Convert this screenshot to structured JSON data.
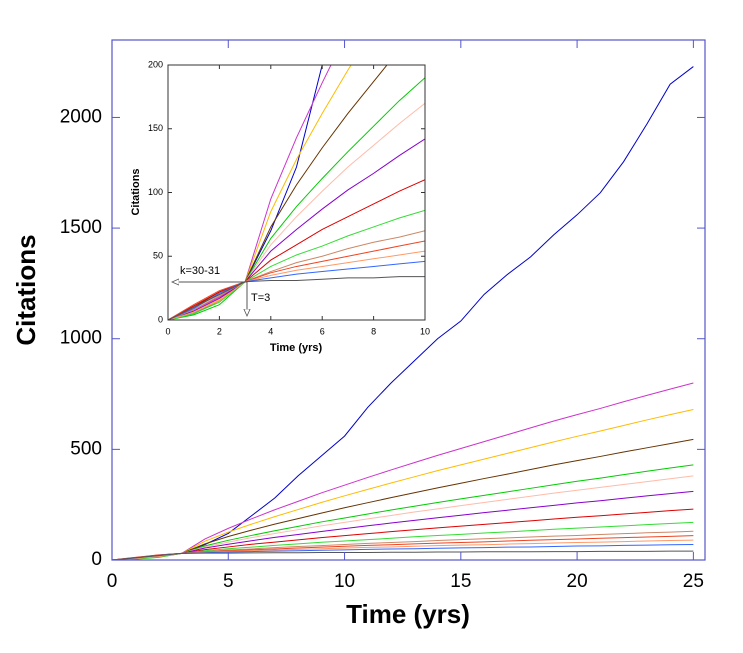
{
  "chart_data": [
    {
      "type": "line",
      "xlabel": "Time (yrs)",
      "ylabel": "Citations",
      "x": [
        0,
        1,
        2,
        3,
        4,
        5,
        6,
        7,
        8,
        9,
        10,
        11,
        12,
        13,
        14,
        15,
        16,
        17,
        18,
        19,
        20,
        21,
        22,
        23,
        24,
        25
      ],
      "xlim": [
        0,
        25.5
      ],
      "ylim": [
        0,
        2350
      ],
      "xticks": [
        0,
        5,
        10,
        15,
        20,
        25
      ],
      "yticks": [
        0,
        500,
        1000,
        1500,
        2000
      ],
      "series": [
        {
          "color": "#0000cc",
          "values": [
            0,
            5,
            15,
            30,
            70,
            120,
            200,
            280,
            380,
            470,
            560,
            690,
            800,
            900,
            1000,
            1080,
            1200,
            1290,
            1370,
            1470,
            1560,
            1660,
            1800,
            1970,
            2150,
            2230
          ]
        },
        {
          "color": "#cc33cc",
          "values": [
            0,
            8,
            18,
            30,
            95,
            143,
            186,
            227,
            265,
            303,
            338,
            373,
            407,
            440,
            473,
            504,
            535,
            566,
            597,
            628,
            657,
            685,
            715,
            744,
            772,
            800
          ]
        },
        {
          "color": "#ffbb00",
          "values": [
            0,
            6,
            16,
            30,
            85,
            126,
            162,
            196,
            228,
            260,
            290,
            319,
            348,
            376,
            404,
            430,
            456,
            482,
            508,
            534,
            559,
            583,
            608,
            633,
            657,
            680
          ]
        },
        {
          "color": "#663300",
          "values": [
            0,
            10,
            22,
            30,
            73,
            106,
            135,
            162,
            187,
            212,
            236,
            259,
            282,
            304,
            326,
            347,
            368,
            388,
            409,
            430,
            449,
            468,
            488,
            507,
            526,
            545
          ]
        },
        {
          "color": "#00cc00",
          "values": [
            0,
            4,
            12,
            30,
            64,
            89,
            111,
            132,
            152,
            172,
            190,
            208,
            226,
            243,
            260,
            276,
            292,
            308,
            324,
            340,
            356,
            370,
            386,
            401,
            416,
            430
          ]
        },
        {
          "color": "#ffbbaa",
          "values": [
            0,
            9,
            20,
            30,
            59,
            81,
            101,
            120,
            137,
            154,
            170,
            186,
            201,
            217,
            231,
            246,
            260,
            274,
            288,
            302,
            315,
            328,
            341,
            354,
            367,
            380
          ]
        },
        {
          "color": "#8800cc",
          "values": [
            0,
            7,
            17,
            30,
            54,
            71,
            87,
            102,
            115,
            129,
            142,
            155,
            167,
            179,
            191,
            202,
            214,
            225,
            236,
            247,
            258,
            268,
            279,
            290,
            300,
            310
          ]
        },
        {
          "color": "#dd0000",
          "values": [
            0,
            11,
            22,
            30,
            47,
            59,
            71,
            81,
            91,
            101,
            110,
            119,
            128,
            137,
            145,
            153,
            161,
            169,
            177,
            185,
            193,
            200,
            208,
            215,
            223,
            230
          ]
        },
        {
          "color": "#33dd33",
          "values": [
            0,
            5,
            14,
            30,
            42,
            51,
            58,
            66,
            73,
            80,
            86,
            92,
            98,
            105,
            111,
            116,
            122,
            127,
            133,
            139,
            144,
            149,
            154,
            160,
            165,
            170
          ]
        },
        {
          "color": "#cc8866",
          "values": [
            0,
            8,
            19,
            30,
            38,
            45,
            50,
            56,
            61,
            65,
            70,
            75,
            79,
            83,
            88,
            92,
            96,
            100,
            104,
            108,
            111,
            115,
            119,
            123,
            126,
            130
          ]
        },
        {
          "color": "#ee4422",
          "values": [
            0,
            12,
            23,
            30,
            37,
            42,
            46,
            50,
            54,
            58,
            62,
            66,
            69,
            73,
            76,
            79,
            82,
            86,
            89,
            92,
            95,
            98,
            101,
            104,
            107,
            110
          ]
        },
        {
          "color": "#ff9966",
          "values": [
            0,
            6,
            15,
            30,
            35,
            39,
            42,
            45,
            48,
            51,
            54,
            57,
            59,
            62,
            65,
            67,
            69,
            72,
            74,
            77,
            79,
            81,
            83,
            86,
            88,
            90
          ]
        },
        {
          "color": "#3366ff",
          "values": [
            0,
            9,
            21,
            30,
            33,
            36,
            38,
            40,
            42,
            44,
            46,
            48,
            50,
            51,
            53,
            55,
            56,
            58,
            59,
            61,
            63,
            64,
            66,
            67,
            69,
            70
          ]
        },
        {
          "color": "#555555",
          "values": [
            0,
            10,
            20,
            30,
            31,
            31,
            32,
            33,
            33,
            34,
            34,
            34,
            35,
            35,
            36,
            36,
            37,
            37,
            37,
            38,
            38,
            39,
            39,
            39,
            40,
            40
          ]
        }
      ]
    },
    {
      "type": "inset",
      "xlabel": "Time (yrs)",
      "ylabel": "Citations",
      "xlim": [
        0,
        10
      ],
      "ylim": [
        0,
        200
      ],
      "xticks": [
        0,
        2,
        4,
        6,
        8,
        10
      ],
      "yticks": [
        0,
        50,
        100,
        150,
        200
      ],
      "annotations": [
        "k=30-31",
        "T=3"
      ]
    }
  ]
}
